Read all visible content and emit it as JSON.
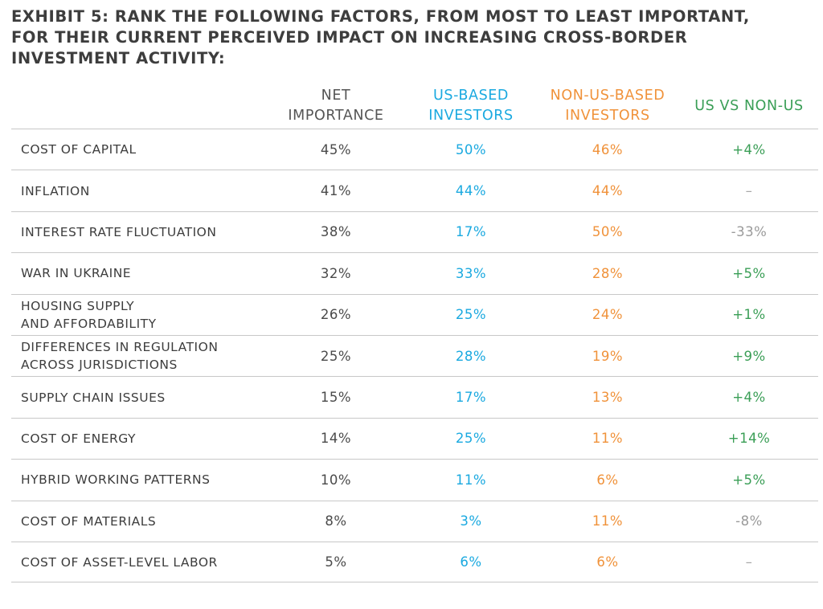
{
  "title": "EXHIBIT 5: RANK THE FOLLOWING FACTORS, FROM MOST TO LEAST IMPORTANT, FOR THEIR CURRENT PERCEIVED IMPACT ON INCREASING CROSS-BORDER INVESTMENT ACTIVITY:",
  "colors": {
    "net": "#4a4a4a",
    "us": "#1aa9e0",
    "non_us": "#f0923a",
    "diff_positive": "#3a9e56",
    "diff_negative": "#9a9a9a"
  },
  "columns": {
    "net": "NET\nIMPORTANCE",
    "us": "US-BASED\nINVESTORS",
    "non_us": "NON-US-BASED\nINVESTORS",
    "diff": "US VS NON-US"
  },
  "rows": [
    {
      "label": "COST OF CAPITAL",
      "net": "45%",
      "us": "50%",
      "non_us": "46%",
      "diff": "+4%",
      "diff_type": "pos"
    },
    {
      "label": "INFLATION",
      "net": "41%",
      "us": "44%",
      "non_us": "44%",
      "diff": "–",
      "diff_type": "none"
    },
    {
      "label": "INTEREST RATE FLUCTUATION",
      "net": "38%",
      "us": "17%",
      "non_us": "50%",
      "diff": "-33%",
      "diff_type": "neg"
    },
    {
      "label": "WAR IN UKRAINE",
      "net": "32%",
      "us": "33%",
      "non_us": "28%",
      "diff": "+5%",
      "diff_type": "pos"
    },
    {
      "label": "HOUSING SUPPLY\nAND AFFORDABILITY",
      "net": "26%",
      "us": "25%",
      "non_us": "24%",
      "diff": "+1%",
      "diff_type": "pos"
    },
    {
      "label": "DIFFERENCES IN REGULATION\nACROSS JURISDICTIONS",
      "net": "25%",
      "us": "28%",
      "non_us": "19%",
      "diff": "+9%",
      "diff_type": "pos"
    },
    {
      "label": "SUPPLY CHAIN ISSUES",
      "net": "15%",
      "us": "17%",
      "non_us": "13%",
      "diff": "+4%",
      "diff_type": "pos"
    },
    {
      "label": "COST OF ENERGY",
      "net": "14%",
      "us": "25%",
      "non_us": "11%",
      "diff": "+14%",
      "diff_type": "pos"
    },
    {
      "label": "HYBRID WORKING PATTERNS",
      "net": "10%",
      "us": "11%",
      "non_us": "6%",
      "diff": "+5%",
      "diff_type": "pos"
    },
    {
      "label": "COST OF MATERIALS",
      "net": "8%",
      "us": "3%",
      "non_us": "11%",
      "diff": "-8%",
      "diff_type": "neg"
    },
    {
      "label": "COST OF ASSET-LEVEL LABOR",
      "net": "5%",
      "us": "6%",
      "non_us": "6%",
      "diff": "–",
      "diff_type": "none"
    }
  ]
}
